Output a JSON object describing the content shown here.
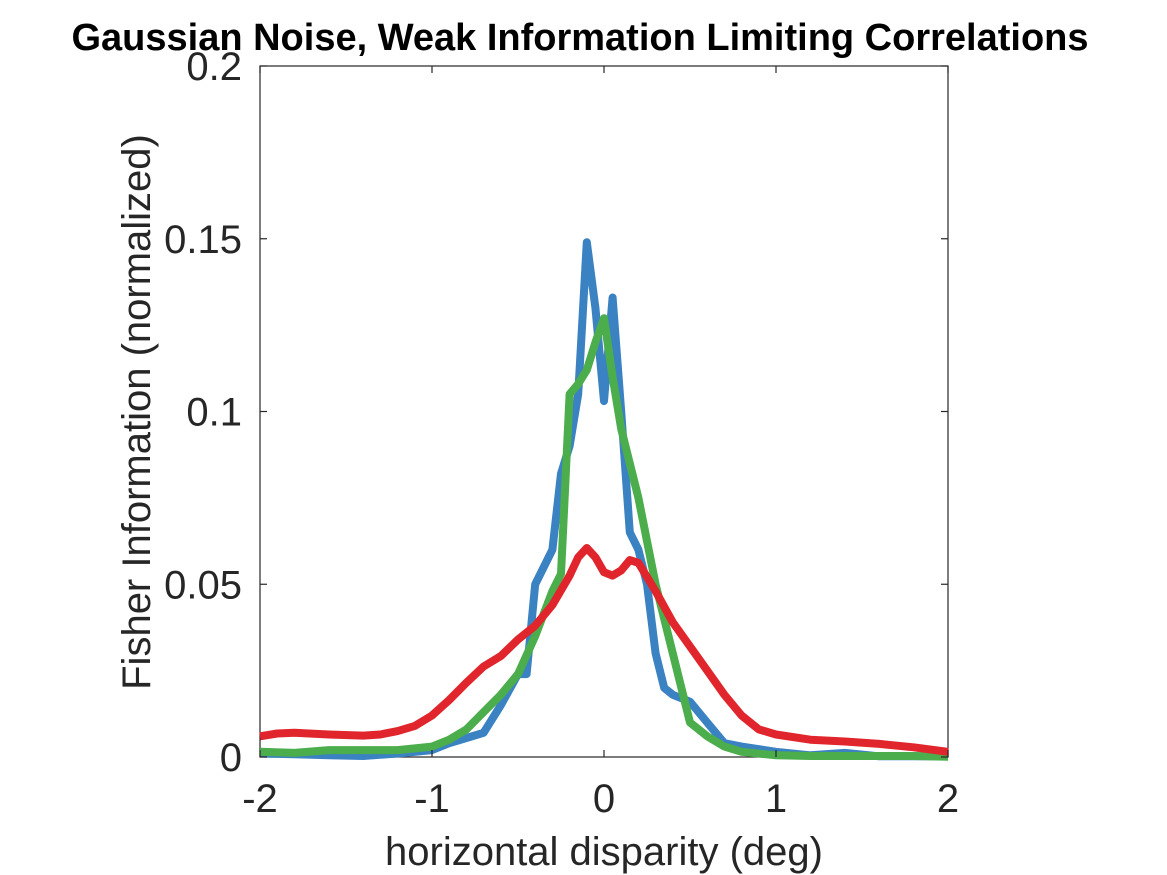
{
  "chart_data": {
    "type": "line",
    "title": "Gaussian Noise, Weak Information Limiting Correlations",
    "xlabel": "horizontal disparity (deg)",
    "ylabel": "Fisher Information (normalized)",
    "xlim": [
      -2,
      2
    ],
    "ylim": [
      0,
      0.2
    ],
    "xticks": [
      -2,
      -1,
      0,
      1,
      2
    ],
    "xtick_labels": [
      "-2",
      "-1",
      "0",
      "1",
      "2"
    ],
    "yticks": [
      0,
      0.05,
      0.1,
      0.15,
      0.2
    ],
    "ytick_labels": [
      "0",
      "0.05",
      "0.1",
      "0.15",
      "0.2"
    ],
    "grid": false,
    "legend": "none",
    "series": [
      {
        "color": "#3b82c2",
        "x": [
          -2.0,
          -1.8,
          -1.6,
          -1.4,
          -1.2,
          -1.0,
          -0.9,
          -0.8,
          -0.7,
          -0.6,
          -0.5,
          -0.45,
          -0.4,
          -0.3,
          -0.25,
          -0.2,
          -0.15,
          -0.1,
          -0.05,
          0.0,
          0.05,
          0.1,
          0.15,
          0.2,
          0.25,
          0.3,
          0.35,
          0.4,
          0.5,
          0.6,
          0.7,
          0.8,
          1.0,
          1.2,
          1.4,
          1.6,
          1.8,
          2.0
        ],
        "y": [
          0.001,
          0.0008,
          0.0005,
          0.0003,
          0.001,
          0.002,
          0.004,
          0.0055,
          0.007,
          0.015,
          0.024,
          0.024,
          0.05,
          0.06,
          0.082,
          0.09,
          0.105,
          0.149,
          0.13,
          0.103,
          0.133,
          0.1,
          0.065,
          0.06,
          0.05,
          0.03,
          0.02,
          0.018,
          0.016,
          0.01,
          0.004,
          0.003,
          0.0015,
          0.0005,
          0.0012,
          0.0002,
          0.0002,
          0.0002
        ]
      },
      {
        "color": "#4cad4c",
        "x": [
          -2.0,
          -1.8,
          -1.6,
          -1.4,
          -1.2,
          -1.0,
          -0.9,
          -0.8,
          -0.7,
          -0.6,
          -0.5,
          -0.4,
          -0.3,
          -0.25,
          -0.2,
          -0.15,
          -0.1,
          -0.05,
          0.0,
          0.05,
          0.1,
          0.2,
          0.3,
          0.4,
          0.5,
          0.6,
          0.7,
          0.8,
          1.0,
          1.2,
          1.4,
          1.6,
          1.8,
          2.0
        ],
        "y": [
          0.0015,
          0.0012,
          0.002,
          0.002,
          0.002,
          0.003,
          0.005,
          0.008,
          0.013,
          0.018,
          0.024,
          0.035,
          0.048,
          0.053,
          0.105,
          0.108,
          0.112,
          0.12,
          0.127,
          0.11,
          0.095,
          0.075,
          0.05,
          0.03,
          0.01,
          0.006,
          0.003,
          0.0015,
          0.0005,
          0.0003,
          0.0003,
          0.0003,
          0.0003,
          0.0001
        ]
      },
      {
        "color": "#e0262c",
        "x": [
          -2.0,
          -1.9,
          -1.8,
          -1.6,
          -1.4,
          -1.3,
          -1.2,
          -1.1,
          -1.0,
          -0.9,
          -0.8,
          -0.7,
          -0.6,
          -0.5,
          -0.4,
          -0.3,
          -0.2,
          -0.15,
          -0.1,
          -0.05,
          0.0,
          0.05,
          0.1,
          0.15,
          0.2,
          0.3,
          0.4,
          0.5,
          0.6,
          0.7,
          0.8,
          0.9,
          1.0,
          1.2,
          1.4,
          1.6,
          1.8,
          2.0
        ],
        "y": [
          0.006,
          0.0068,
          0.007,
          0.0065,
          0.0062,
          0.0065,
          0.0075,
          0.009,
          0.012,
          0.0165,
          0.0215,
          0.0262,
          0.0292,
          0.034,
          0.038,
          0.044,
          0.0525,
          0.0578,
          0.0605,
          0.0578,
          0.0535,
          0.0525,
          0.054,
          0.057,
          0.0562,
          0.048,
          0.039,
          0.032,
          0.025,
          0.018,
          0.012,
          0.008,
          0.0065,
          0.005,
          0.0045,
          0.0038,
          0.0028,
          0.0015
        ]
      }
    ]
  }
}
